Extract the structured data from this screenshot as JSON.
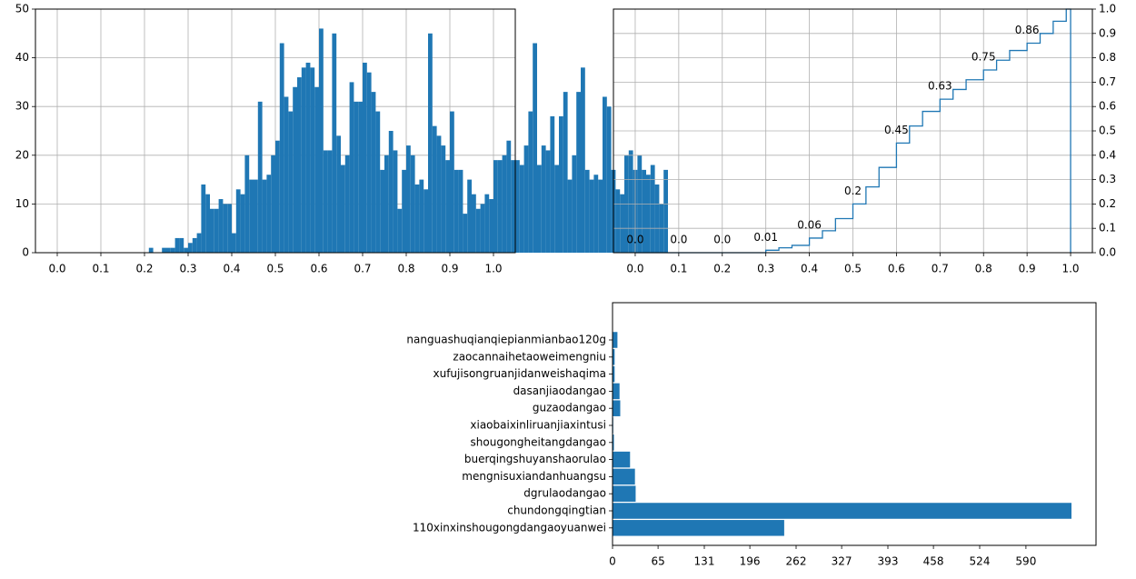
{
  "colors": {
    "bar": "#1f77b4",
    "line": "#1f77b4",
    "grid": "#b0b0b0",
    "axis": "#000000"
  },
  "chart_data": [
    {
      "type": "bar",
      "subtype": "histogram",
      "title": "",
      "xlabel": "",
      "ylabel": "",
      "xlim": [
        -0.05,
        1.05
      ],
      "ylim": [
        0,
        50
      ],
      "xticks": [
        0.0,
        0.1,
        0.2,
        0.3,
        0.4,
        0.5,
        0.6,
        0.7,
        0.8,
        0.9,
        1.0
      ],
      "xtick_labels": [
        "0.0",
        "0.1",
        "0.2",
        "0.3",
        "0.4",
        "0.5",
        "0.6",
        "0.7",
        "0.8",
        "0.9",
        "1.0"
      ],
      "yticks": [
        0,
        10,
        20,
        30,
        40,
        50
      ],
      "ytick_labels": [
        "0",
        "10",
        "20",
        "30",
        "40",
        "50"
      ],
      "grid": true,
      "bin_start": 0.0,
      "bin_width": 0.01,
      "values": [
        0,
        0,
        0,
        0,
        0,
        0,
        0,
        0,
        0,
        0,
        0,
        0,
        0,
        0,
        0,
        0,
        0,
        0,
        0,
        0,
        0,
        1,
        0,
        0,
        1,
        1,
        1,
        3,
        3,
        1,
        2,
        3,
        4,
        14,
        12,
        9,
        9,
        11,
        10,
        10,
        4,
        13,
        12,
        20,
        15,
        15,
        31,
        15,
        16,
        20,
        23,
        43,
        32,
        29,
        34,
        36,
        38,
        39,
        38,
        34,
        46,
        21,
        21,
        45,
        24,
        18,
        20,
        35,
        31,
        31,
        39,
        37,
        33,
        29,
        17,
        20,
        25,
        21,
        9,
        17,
        22,
        20,
        14,
        15,
        13,
        45,
        26,
        24,
        22,
        19,
        29,
        17,
        17,
        8,
        15,
        12,
        9,
        10,
        12,
        11,
        19,
        19,
        20,
        23,
        19,
        19,
        18,
        22,
        29,
        43,
        18,
        22,
        21,
        28,
        18,
        28,
        33,
        15,
        20,
        33,
        38,
        17,
        15,
        16,
        15,
        32,
        30,
        17,
        13,
        12,
        20,
        21,
        17,
        20,
        17,
        16,
        18,
        14,
        10,
        17
      ]
    },
    {
      "type": "line",
      "subtype": "ecdf-step",
      "title": "",
      "xlabel": "",
      "ylabel": "",
      "xlim": [
        -0.05,
        1.05
      ],
      "ylim": [
        0,
        1.0
      ],
      "xticks": [
        0.0,
        0.1,
        0.2,
        0.3,
        0.4,
        0.5,
        0.6,
        0.7,
        0.8,
        0.9,
        1.0
      ],
      "xtick_labels": [
        "0.0",
        "0.1",
        "0.2",
        "0.3",
        "0.4",
        "0.5",
        "0.6",
        "0.7",
        "0.8",
        "0.9",
        "1.0"
      ],
      "yticks": [
        0,
        0.1,
        0.2,
        0.3,
        0.4,
        0.5,
        0.6,
        0.7,
        0.8,
        0.9,
        1.0
      ],
      "ytick_labels": [
        "0.0",
        "0.1",
        "0.2",
        "0.3",
        "0.4",
        "0.5",
        "0.6",
        "0.7",
        "0.8",
        "0.9",
        "1.0"
      ],
      "yaxis_side": "right",
      "grid": true,
      "x": [
        0.0,
        0.2,
        0.25,
        0.3,
        0.33,
        0.36,
        0.4,
        0.43,
        0.46,
        0.5,
        0.53,
        0.56,
        0.6,
        0.63,
        0.66,
        0.7,
        0.73,
        0.76,
        0.8,
        0.83,
        0.86,
        0.9,
        0.93,
        0.96,
        0.99,
        1.0,
        1.0
      ],
      "y": [
        0.0,
        0.0,
        0.0,
        0.01,
        0.02,
        0.03,
        0.06,
        0.09,
        0.14,
        0.2,
        0.27,
        0.35,
        0.45,
        0.52,
        0.58,
        0.63,
        0.67,
        0.71,
        0.75,
        0.79,
        0.83,
        0.86,
        0.9,
        0.95,
        1.0,
        1.0,
        0.0
      ],
      "annotations": [
        {
          "x": 0.0,
          "y": 0.0,
          "label": "0.0"
        },
        {
          "x": 0.1,
          "y": 0.0,
          "label": "0.0"
        },
        {
          "x": 0.2,
          "y": 0.0,
          "label": "0.0"
        },
        {
          "x": 0.3,
          "y": 0.01,
          "label": "0.01"
        },
        {
          "x": 0.4,
          "y": 0.06,
          "label": "0.06"
        },
        {
          "x": 0.5,
          "y": 0.2,
          "label": "0.2"
        },
        {
          "x": 0.6,
          "y": 0.45,
          "label": "0.45"
        },
        {
          "x": 0.7,
          "y": 0.63,
          "label": "0.63"
        },
        {
          "x": 0.8,
          "y": 0.75,
          "label": "0.75"
        },
        {
          "x": 0.9,
          "y": 0.86,
          "label": "0.86"
        },
        {
          "x": 1.0,
          "y": 1.0,
          "label": "1.0"
        }
      ]
    },
    {
      "type": "bar",
      "orientation": "horizontal",
      "title": "",
      "xlabel": "",
      "ylabel": "",
      "xlim": [
        0,
        655
      ],
      "xticks": [
        0,
        65,
        131,
        196,
        262,
        327,
        393,
        458,
        524,
        590
      ],
      "xtick_labels": [
        "0",
        "65",
        "131",
        "196",
        "262",
        "327",
        "393",
        "458",
        "524",
        "590"
      ],
      "grid": false,
      "categories": [
        "nanguashuqianqiepianmianbao120g",
        "zaocannaihetaoweimengniu",
        "xufujisongruanjidanweishaqima",
        "dasanjiaodangao",
        "guzaodangao",
        "xiaobaixinliruanjiaxintusi",
        "shougongheitangdangao",
        "buerqingshuyanshaorulao",
        "mengnisuxiandanhuangsu",
        "dgrulaodangao",
        "chundongqingtian",
        "110xinxinshougongdangaoyuanwei"
      ],
      "values": [
        7,
        3,
        3,
        10,
        11,
        1,
        2,
        25,
        32,
        33,
        655,
        245
      ]
    }
  ]
}
